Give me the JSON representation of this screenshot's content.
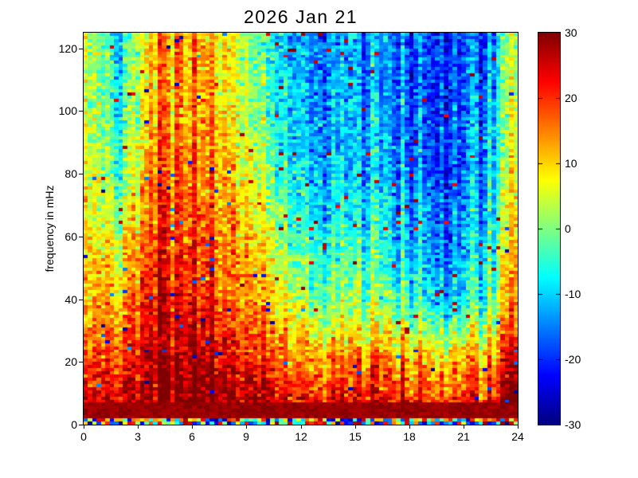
{
  "figure": {
    "title": "2026 Jan 21",
    "background_color": "#ffffff"
  },
  "chart_data": {
    "type": "heatmap",
    "title": "2026 Jan 21",
    "ylabel": "frequency in mHz",
    "xlim": [
      0,
      24
    ],
    "ylim": [
      0,
      125
    ],
    "clim": [
      -30,
      30
    ],
    "x_ticks": [
      0,
      3,
      6,
      9,
      12,
      15,
      18,
      21,
      24
    ],
    "y_ticks": [
      0,
      20,
      40,
      60,
      80,
      100,
      120
    ],
    "colorbar_ticks": [
      30,
      20,
      10,
      0,
      -10,
      -20,
      -30
    ],
    "colormap": "jet",
    "grid_on": false,
    "legend": "colorbar-right",
    "grid": {
      "comment": "mean value field sampled from the spectrogram; t in hours (columns), f in mHz (rows ascending)",
      "t": [
        0,
        2,
        4,
        6,
        8,
        10,
        12,
        14,
        16,
        18,
        20,
        22,
        24
      ],
      "f": [
        0,
        10,
        20,
        30,
        40,
        50,
        60,
        70,
        80,
        90,
        100,
        110,
        120
      ],
      "values": [
        [
          30,
          30,
          30,
          30,
          30,
          30,
          30,
          30,
          30,
          30,
          30,
          30,
          30
        ],
        [
          22,
          27,
          30,
          30,
          28,
          26,
          22,
          20,
          20,
          19,
          18,
          19,
          21
        ],
        [
          16,
          22,
          29,
          27,
          24,
          20,
          16,
          15,
          15,
          14,
          13,
          14,
          16
        ],
        [
          13,
          18,
          28,
          24,
          20,
          16,
          9,
          7,
          6,
          5,
          0,
          5,
          10
        ],
        [
          10,
          14,
          26,
          20,
          17,
          12,
          3,
          0,
          -2,
          -4,
          -10,
          -4,
          6
        ],
        [
          8,
          11,
          24,
          19,
          15,
          10,
          -1,
          -3,
          -5,
          -7,
          -13,
          -7,
          4
        ],
        [
          7,
          8,
          22,
          18,
          14,
          8,
          -4,
          -6,
          -7,
          -10,
          -15,
          -9,
          2
        ],
        [
          6,
          4,
          20,
          16,
          12,
          5,
          -6,
          -8,
          -10,
          -12,
          -16,
          -11,
          0
        ],
        [
          5,
          0,
          18,
          15,
          11,
          2,
          -8,
          -10,
          -12,
          -14,
          -17,
          -12,
          -2
        ],
        [
          4,
          -2,
          17,
          14,
          10,
          0,
          -10,
          -12,
          -13,
          -15,
          -18,
          -13,
          -3
        ],
        [
          4,
          -4,
          16,
          13,
          9,
          -2,
          -11,
          -13,
          -14,
          -16,
          -18,
          -14,
          -4
        ],
        [
          3,
          -5,
          15,
          12,
          8,
          -3,
          -12,
          -13,
          -15,
          -16,
          -18,
          -15,
          -5
        ],
        [
          3,
          -6,
          15,
          12,
          8,
          -4,
          -12,
          -14,
          -15,
          -16,
          -18,
          -16,
          -5
        ]
      ]
    },
    "texture": {
      "seed": 42,
      "cols": 100,
      "rows": 125,
      "noise_sigma": 3.8,
      "column_stripe_sigma": 3.2,
      "outlier_probability": 0.015,
      "bottom_mixed_max_f": 2,
      "bottom_solid_max_f": 7,
      "warm_edge_time": 23.6,
      "warm_edge_boost": 9
    }
  }
}
